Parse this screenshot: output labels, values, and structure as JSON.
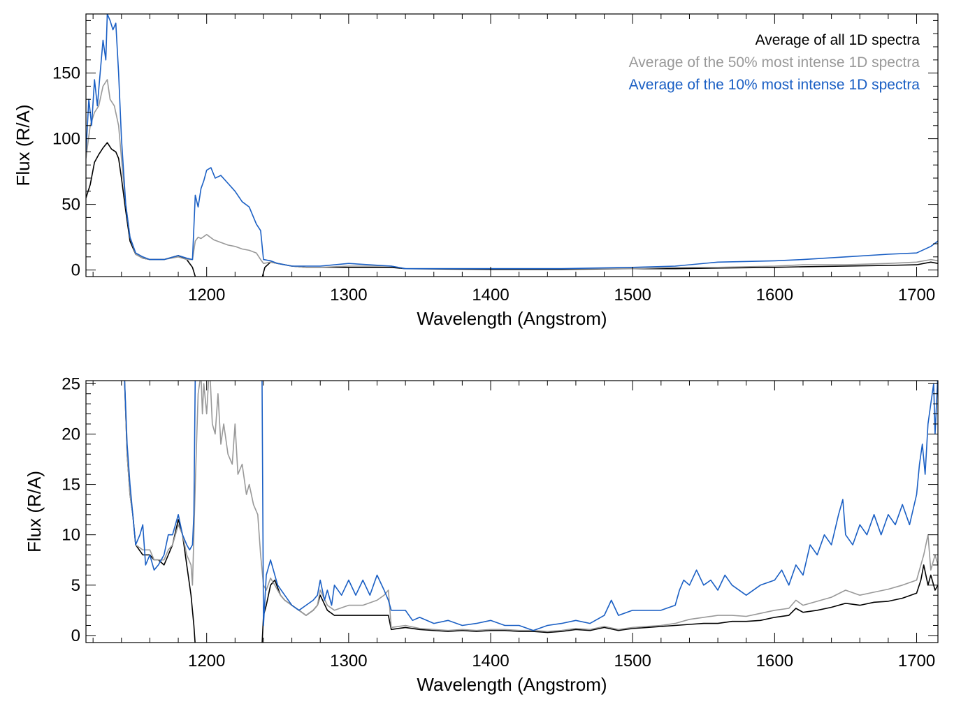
{
  "chart_data": [
    {
      "type": "line",
      "panel": "top",
      "xlabel": "Wavelength (Angstrom)",
      "ylabel": "Flux (R/A)",
      "xlim": [
        1115,
        1715
      ],
      "ylim": [
        -5,
        195
      ],
      "xticks": [
        1200,
        1300,
        1400,
        1500,
        1600,
        1700
      ],
      "yticks": [
        0,
        50,
        100,
        150
      ],
      "grid": false,
      "legend_position": "top-right",
      "colors": {
        "all": "#000000",
        "p50": "#999999",
        "p10": "#1a5fc4"
      },
      "series": [
        {
          "key": "all",
          "name": "Average of all 1D spectra",
          "x": [
            1115,
            1118,
            1121,
            1124,
            1127,
            1130,
            1133,
            1136,
            1138,
            1140,
            1143,
            1146,
            1150,
            1155,
            1160,
            1170,
            1180,
            1186,
            1190,
            1192,
            1195,
            1200,
            1205,
            1210,
            1215,
            1220,
            1225,
            1230,
            1235,
            1239,
            1241,
            1245,
            1250,
            1260,
            1270,
            1280,
            1300,
            1330,
            1340,
            1400,
            1450,
            1500,
            1530,
            1560,
            1600,
            1620,
            1650,
            1680,
            1700,
            1710,
            1715
          ],
          "y": [
            55,
            65,
            82,
            88,
            93,
            97,
            92,
            90,
            85,
            70,
            45,
            22,
            12,
            9,
            8,
            8,
            11,
            8,
            2,
            -5,
            -6,
            -6,
            -6,
            -6,
            -6,
            -6,
            -6,
            -6,
            -6,
            -6,
            2,
            6,
            5,
            3,
            2,
            2,
            2,
            2,
            1,
            0.5,
            0.5,
            1,
            1,
            1.5,
            2,
            2.5,
            3,
            3.5,
            4,
            6,
            5
          ]
        },
        {
          "key": "p50",
          "name": "Average of the 50% most intense 1D spectra",
          "x": [
            1115,
            1118,
            1121,
            1124,
            1127,
            1130,
            1132,
            1135,
            1138,
            1140,
            1143,
            1146,
            1150,
            1155,
            1160,
            1170,
            1180,
            1186,
            1190,
            1192,
            1194,
            1196,
            1200,
            1205,
            1210,
            1215,
            1220,
            1225,
            1230,
            1235,
            1238,
            1240,
            1245,
            1250,
            1260,
            1270,
            1280,
            1300,
            1330,
            1340,
            1400,
            1450,
            1500,
            1530,
            1560,
            1600,
            1620,
            1650,
            1680,
            1700,
            1710,
            1715
          ],
          "y": [
            85,
            110,
            120,
            125,
            140,
            145,
            130,
            125,
            110,
            85,
            50,
            25,
            12,
            9,
            8,
            8,
            10,
            8,
            8,
            22,
            25,
            24,
            27,
            23,
            21,
            19,
            18,
            16,
            15,
            13,
            8,
            5,
            6,
            5,
            3,
            2,
            2,
            3,
            3,
            1,
            1,
            1,
            1,
            2,
            2,
            3,
            4,
            4,
            5,
            6,
            8,
            7
          ]
        },
        {
          "key": "p10",
          "name": "Average of the 10% most intense 1D spectra",
          "x": [
            1115,
            1117,
            1119,
            1121,
            1123,
            1125,
            1127,
            1129,
            1130,
            1132,
            1134,
            1136,
            1138,
            1140,
            1143,
            1146,
            1150,
            1155,
            1160,
            1170,
            1180,
            1186,
            1190,
            1192,
            1194,
            1196,
            1198,
            1200,
            1203,
            1206,
            1210,
            1215,
            1220,
            1225,
            1230,
            1235,
            1238,
            1240,
            1245,
            1250,
            1260,
            1280,
            1300,
            1330,
            1340,
            1400,
            1450,
            1500,
            1530,
            1560,
            1600,
            1620,
            1650,
            1680,
            1700,
            1710,
            1715
          ],
          "y": [
            90,
            130,
            110,
            145,
            125,
            150,
            175,
            160,
            195,
            190,
            183,
            188,
            150,
            100,
            50,
            25,
            13,
            10,
            8,
            8,
            11,
            9,
            8,
            57,
            48,
            62,
            68,
            76,
            78,
            70,
            72,
            66,
            60,
            52,
            48,
            35,
            30,
            8,
            7,
            5,
            3,
            3,
            5,
            3,
            1,
            1,
            1,
            2,
            3,
            6,
            7,
            8,
            10,
            12,
            13,
            18,
            22
          ]
        }
      ]
    },
    {
      "type": "line",
      "panel": "bottom",
      "xlabel": "Wavelength (Angstrom)",
      "ylabel": "Flux (R/A)",
      "xlim": [
        1115,
        1715
      ],
      "ylim": [
        -0.7,
        25.3
      ],
      "xticks": [
        1200,
        1300,
        1400,
        1500,
        1600,
        1700
      ],
      "yticks": [
        0,
        5,
        10,
        15,
        20,
        25
      ],
      "grid": false,
      "colors": {
        "all": "#000000",
        "p50": "#999999",
        "p10": "#1a5fc4"
      },
      "series": [
        {
          "key": "all",
          "name": "Average of all 1D spectra",
          "x": [
            1142,
            1144,
            1146,
            1148,
            1150,
            1155,
            1160,
            1163,
            1166,
            1170,
            1173,
            1176,
            1180,
            1183,
            1186,
            1189,
            1191,
            1192,
            1239,
            1240,
            1242,
            1245,
            1248,
            1252,
            1255,
            1260,
            1265,
            1270,
            1275,
            1278,
            1280,
            1285,
            1290,
            1300,
            1310,
            1320,
            1328,
            1330,
            1335,
            1340,
            1350,
            1360,
            1370,
            1380,
            1390,
            1400,
            1410,
            1420,
            1430,
            1440,
            1450,
            1460,
            1470,
            1480,
            1490,
            1500,
            1510,
            1520,
            1530,
            1540,
            1550,
            1560,
            1570,
            1580,
            1590,
            1600,
            1610,
            1615,
            1620,
            1630,
            1640,
            1650,
            1660,
            1670,
            1680,
            1690,
            1700,
            1703,
            1705,
            1708,
            1710,
            1713,
            1715
          ],
          "y": [
            26,
            18,
            14,
            12,
            9,
            8,
            8,
            7.5,
            7.5,
            7,
            8,
            9,
            11.5,
            10,
            7,
            4,
            1,
            -1,
            -1,
            2,
            3,
            5,
            5.5,
            4,
            3.5,
            3,
            2.5,
            2,
            2.5,
            3,
            4,
            2.5,
            2,
            2,
            2,
            2,
            2,
            0.6,
            0.7,
            0.8,
            0.6,
            0.5,
            0.4,
            0.5,
            0.4,
            0.5,
            0.5,
            0.4,
            0.4,
            0.3,
            0.4,
            0.6,
            0.5,
            0.8,
            0.5,
            0.7,
            0.8,
            0.9,
            1,
            1.1,
            1.2,
            1.2,
            1.4,
            1.4,
            1.5,
            1.8,
            2,
            2.7,
            2.3,
            2.5,
            2.8,
            3.2,
            3,
            3.3,
            3.4,
            3.7,
            4.2,
            5.5,
            7,
            5,
            6,
            4.5,
            5
          ]
        },
        {
          "key": "p50",
          "name": "Average of the 50% most intense 1D spectra",
          "x": [
            1142,
            1144,
            1146,
            1148,
            1150,
            1155,
            1160,
            1163,
            1166,
            1170,
            1173,
            1176,
            1180,
            1183,
            1186,
            1189,
            1190,
            1192,
            1194,
            1196,
            1197,
            1198,
            1200,
            1202,
            1204,
            1206,
            1208,
            1210,
            1212,
            1215,
            1218,
            1220,
            1222,
            1225,
            1228,
            1230,
            1233,
            1236,
            1238,
            1240,
            1242,
            1245,
            1248,
            1252,
            1255,
            1260,
            1265,
            1270,
            1275,
            1278,
            1280,
            1285,
            1290,
            1300,
            1310,
            1320,
            1325,
            1328,
            1330,
            1335,
            1340,
            1350,
            1360,
            1370,
            1380,
            1390,
            1400,
            1410,
            1420,
            1430,
            1440,
            1450,
            1460,
            1470,
            1480,
            1490,
            1500,
            1510,
            1520,
            1530,
            1540,
            1550,
            1560,
            1570,
            1580,
            1590,
            1600,
            1610,
            1615,
            1620,
            1630,
            1640,
            1650,
            1660,
            1670,
            1680,
            1690,
            1700,
            1703,
            1705,
            1708,
            1710,
            1713,
            1715
          ],
          "y": [
            26,
            18,
            14,
            12,
            9,
            8.5,
            8.5,
            7.5,
            7.5,
            7.5,
            8.5,
            9,
            11,
            10,
            8,
            7,
            5,
            15,
            24,
            26,
            22,
            25,
            22,
            27,
            21,
            20,
            24,
            19,
            21,
            18,
            17,
            21,
            16,
            17,
            14,
            15,
            13,
            12,
            8,
            5,
            4.5,
            5.7,
            5,
            4,
            3.5,
            3,
            2.5,
            2,
            2.5,
            3,
            4.5,
            3,
            2.5,
            3,
            3,
            3.5,
            4,
            4.5,
            0.8,
            0.9,
            1,
            0.7,
            0.6,
            0.5,
            0.6,
            0.5,
            0.6,
            0.6,
            0.5,
            0.5,
            0.4,
            0.5,
            0.7,
            0.6,
            0.9,
            0.6,
            0.8,
            0.9,
            1,
            1.2,
            1.6,
            1.8,
            2,
            2,
            1.9,
            2.2,
            2.5,
            2.7,
            3.5,
            3,
            3.4,
            3.8,
            4.5,
            4,
            4.3,
            4.6,
            5,
            5.5,
            7,
            8,
            10,
            6.5,
            8,
            7
          ]
        },
        {
          "key": "p10",
          "name": "Average of the 10% most intense 1D spectra",
          "x": [
            1142,
            1144,
            1146,
            1148,
            1150,
            1153,
            1155,
            1157,
            1160,
            1163,
            1166,
            1170,
            1173,
            1176,
            1180,
            1183,
            1186,
            1188,
            1190,
            1191,
            1192,
            1238,
            1239,
            1240,
            1242,
            1245,
            1248,
            1250,
            1255,
            1260,
            1265,
            1270,
            1275,
            1278,
            1280,
            1283,
            1285,
            1288,
            1290,
            1295,
            1300,
            1305,
            1310,
            1315,
            1320,
            1325,
            1328,
            1330,
            1335,
            1340,
            1345,
            1350,
            1360,
            1370,
            1380,
            1390,
            1400,
            1410,
            1420,
            1430,
            1440,
            1450,
            1460,
            1470,
            1480,
            1485,
            1490,
            1500,
            1510,
            1520,
            1530,
            1533,
            1536,
            1540,
            1545,
            1550,
            1555,
            1560,
            1565,
            1570,
            1580,
            1590,
            1600,
            1605,
            1610,
            1615,
            1620,
            1625,
            1630,
            1635,
            1640,
            1645,
            1648,
            1650,
            1655,
            1660,
            1665,
            1670,
            1675,
            1680,
            1685,
            1690,
            1695,
            1700,
            1702,
            1704,
            1706,
            1708,
            1710,
            1712,
            1713,
            1715
          ],
          "y": [
            26,
            19,
            15,
            12,
            9,
            10,
            11,
            7,
            8,
            6.5,
            7,
            8,
            10,
            10,
            12,
            10,
            9,
            8.5,
            9,
            12,
            26,
            26,
            26,
            1,
            6,
            7.5,
            6,
            5,
            4,
            3,
            2.5,
            3,
            3.5,
            4,
            5.5,
            3.5,
            4.5,
            3,
            5,
            4,
            5.5,
            4,
            5.5,
            4,
            6,
            4.5,
            3.5,
            2.5,
            2.5,
            2.5,
            1.5,
            1.8,
            1.2,
            1.5,
            1,
            1.2,
            1.5,
            1,
            1,
            0.5,
            1,
            1.2,
            1.5,
            1.2,
            2,
            3.5,
            2,
            2.5,
            2.5,
            2.5,
            3,
            4.5,
            5.5,
            5,
            6.5,
            5,
            5.5,
            4.5,
            6,
            5,
            4,
            5,
            5.5,
            6.5,
            5,
            7,
            6,
            9,
            8,
            10,
            9,
            12,
            13.5,
            10,
            9,
            11,
            10,
            12,
            10,
            12,
            11,
            13,
            11,
            14,
            17,
            19,
            16,
            21,
            23,
            25,
            20,
            26
          ]
        }
      ]
    }
  ]
}
